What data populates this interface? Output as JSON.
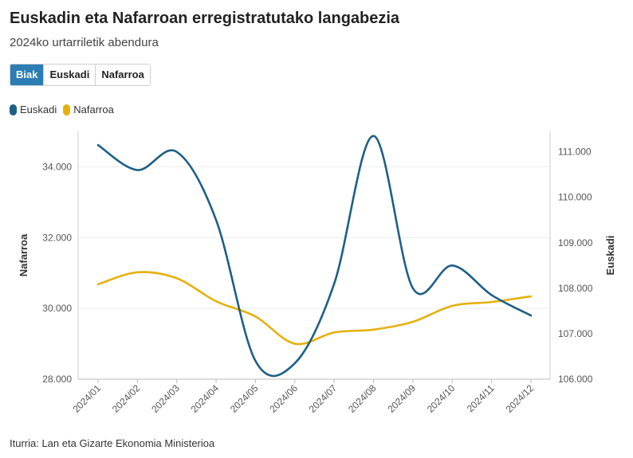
{
  "title": "Euskadin eta Nafarroan erregistratutako langabezia",
  "subtitle": "2024ko urtarriletik abendura",
  "tabs": [
    {
      "label": "Biak",
      "active": true
    },
    {
      "label": "Euskadi",
      "active": false
    },
    {
      "label": "Nafarroa",
      "active": false
    }
  ],
  "legend": [
    {
      "label": "Euskadi",
      "color": "#1f5f85"
    },
    {
      "label": "Nafarroa",
      "color": "#e6b00e"
    }
  ],
  "source": "Iturria: Lan eta Gizarte Ekonomia Ministerioa",
  "chart_data": {
    "type": "line",
    "x": [
      "2024/01",
      "2024/02",
      "2024/03",
      "2024/04",
      "2024/05",
      "2024/06",
      "2024/07",
      "2024/08",
      "2024/09",
      "2024/10",
      "2024/11",
      "2024/12"
    ],
    "series": [
      {
        "name": "Euskadi",
        "axis": "right",
        "color": "#1f5f85",
        "values": [
          111.15,
          110.6,
          111.0,
          109.5,
          106.4,
          106.35,
          108.1,
          111.35,
          108.0,
          108.5,
          107.85,
          107.4
        ]
      },
      {
        "name": "Nafarroa",
        "axis": "left",
        "color": "#e6b00e",
        "values": [
          30680,
          31020,
          30850,
          30200,
          29770,
          29000,
          29320,
          29400,
          29620,
          30070,
          30180,
          30340
        ]
      }
    ],
    "y_left": {
      "label": "Nafarroa",
      "range": [
        28000,
        35000
      ],
      "ticks": [
        28000,
        30000,
        32000,
        34000
      ],
      "tick_labels": [
        "28.000",
        "30.000",
        "32.000",
        "34.000"
      ]
    },
    "y_right": {
      "label": "Euskadi",
      "range": [
        106.0,
        111.45
      ],
      "ticks": [
        106,
        107,
        108,
        109,
        110,
        111
      ],
      "tick_labels": [
        "106.000",
        "107.000",
        "108.000",
        "109.000",
        "110.000",
        "111.000"
      ]
    },
    "grid": true,
    "legend_position": "top-left"
  }
}
